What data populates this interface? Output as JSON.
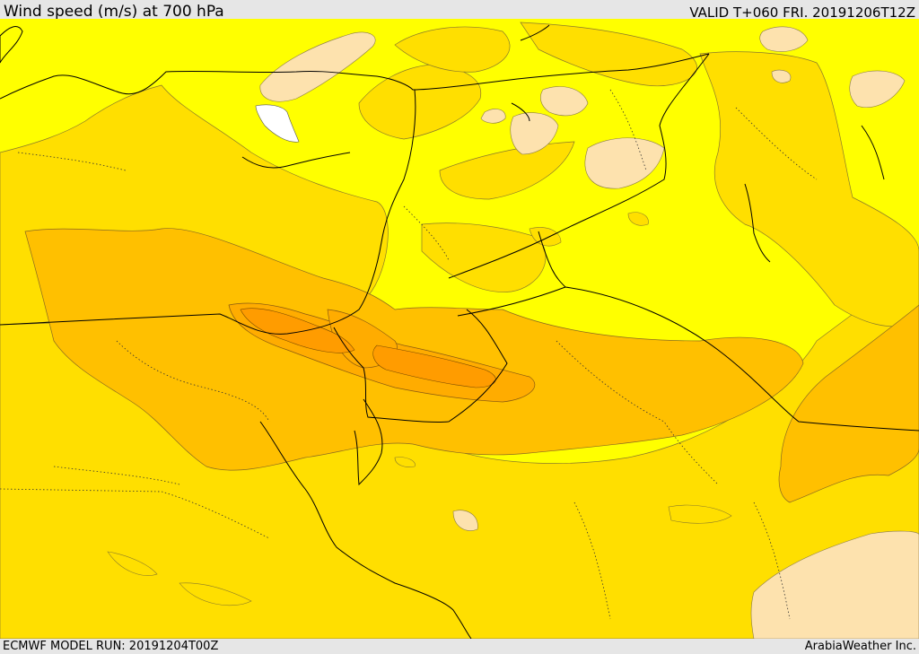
{
  "header": {
    "title": "Wind speed (m/s) at 700 hPa",
    "valid": "VALID T+060 FRI. 20191206T12Z"
  },
  "footer": {
    "model_run": "ECMWF MODEL RUN: 20191204T00Z",
    "credit": "ArabiaWeather Inc."
  },
  "map": {
    "field": "wind-speed-700hPa",
    "colors": {
      "calm": "#ffffff",
      "very_light": "#fde2ae",
      "light": "#ffff00",
      "moderate": "#ffdf00",
      "strong": "#ffc000",
      "stronger": "#ffb000",
      "strongest": "#ff9c00"
    }
  }
}
